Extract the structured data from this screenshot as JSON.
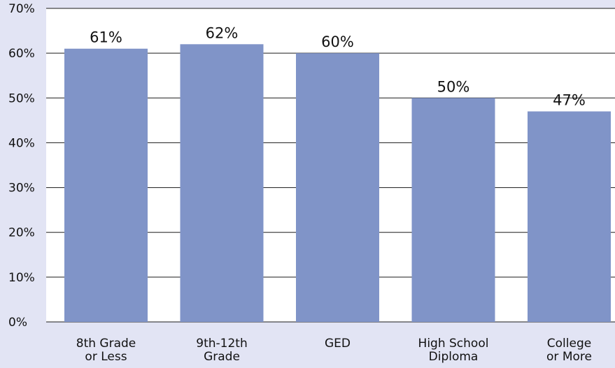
{
  "chart_data": {
    "type": "bar",
    "categories": [
      [
        "8th Grade",
        "or Less"
      ],
      [
        "9th-12th",
        "Grade"
      ],
      [
        "GED"
      ],
      [
        "High School",
        "Diploma"
      ],
      [
        "College",
        "or More"
      ]
    ],
    "values": [
      61,
      62,
      60,
      50,
      47
    ],
    "value_labels": [
      "61%",
      "62%",
      "60%",
      "50%",
      "47%"
    ],
    "ylim": [
      0,
      70
    ],
    "yticks": [
      0,
      10,
      20,
      30,
      40,
      50,
      60,
      70
    ],
    "ytick_labels": [
      "0%",
      "10%",
      "20%",
      "30%",
      "40%",
      "50%",
      "60%",
      "70%"
    ],
    "title": "",
    "xlabel": "",
    "ylabel": "",
    "grid": true,
    "colors": {
      "background": "#e2e4f4",
      "plot_area": "#ffffff",
      "bar": "#8094c8",
      "grid": "#1a1a1a",
      "text": "#111111"
    }
  }
}
